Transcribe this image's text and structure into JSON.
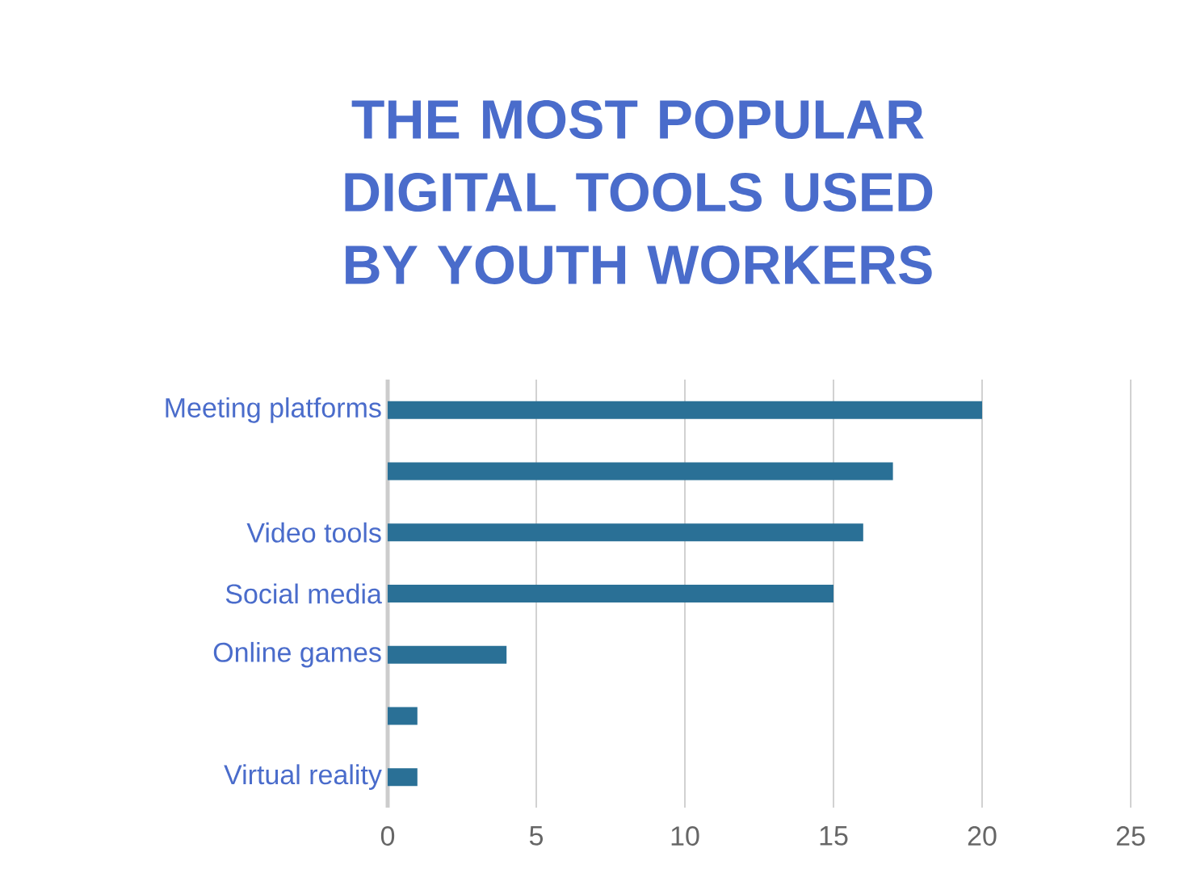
{
  "chart_data": {
    "type": "bar",
    "orientation": "horizontal",
    "title": "THE MOST POPULAR DIGITAL TOOLS USED BY YOUTH WORKERS",
    "categories": [
      "Meeting platforms",
      null,
      "Video tools",
      "Social media",
      "Online games",
      null,
      "Virtual reality"
    ],
    "values": [
      20,
      17,
      16,
      15,
      4,
      1,
      1
    ],
    "color": "#2a7096",
    "xlim": [
      0,
      25
    ],
    "xticks": [
      0,
      5,
      10,
      15,
      20,
      25
    ],
    "grid": "x"
  }
}
